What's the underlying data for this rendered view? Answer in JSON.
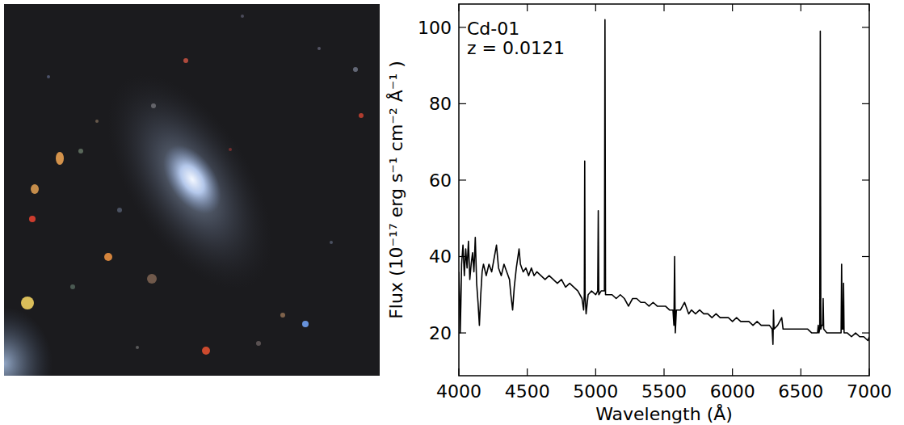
{
  "chart_data": {
    "type": "line",
    "annotations": [
      "Cd-01",
      "z = 0.0121"
    ],
    "x_label": "Wavelength (Å)",
    "y_label": "Flux (10⁻¹⁷ erg s⁻¹ cm⁻² Å⁻¹ )",
    "xlim": [
      4000,
      7000
    ],
    "ylim": [
      8.8,
      106.1
    ],
    "xticks": [
      4000,
      4500,
      5000,
      5500,
      6000,
      6500,
      7000
    ],
    "yticks": [
      20,
      40,
      60,
      80,
      100
    ],
    "grid": false,
    "x": [
      4000,
      4005,
      4010,
      4015,
      4020,
      4030,
      4040,
      4050,
      4060,
      4070,
      4080,
      4090,
      4100,
      4110,
      4120,
      4130,
      4140,
      4150,
      4160,
      4170,
      4180,
      4200,
      4220,
      4240,
      4260,
      4275,
      4290,
      4310,
      4330,
      4350,
      4370,
      4380,
      4393,
      4405,
      4420,
      4440,
      4450,
      4470,
      4490,
      4510,
      4530,
      4550,
      4570,
      4600,
      4630,
      4660,
      4690,
      4720,
      4750,
      4780,
      4810,
      4840,
      4870,
      4900,
      4912,
      4917,
      4920,
      4923,
      4930,
      4945,
      4970,
      5000,
      5015,
      5019,
      5023,
      5040,
      5064,
      5068,
      5072,
      5090,
      5120,
      5150,
      5180,
      5210,
      5240,
      5270,
      5300,
      5330,
      5360,
      5390,
      5420,
      5450,
      5480,
      5510,
      5540,
      5565,
      5572,
      5577,
      5582,
      5590,
      5620,
      5650,
      5680,
      5700,
      5730,
      5760,
      5790,
      5820,
      5850,
      5880,
      5910,
      5940,
      5970,
      6000,
      6030,
      6060,
      6090,
      6120,
      6150,
      6180,
      6210,
      6240,
      6270,
      6290,
      6296,
      6300,
      6304,
      6330,
      6360,
      6370,
      6400,
      6430,
      6460,
      6490,
      6520,
      6550,
      6580,
      6610,
      6622,
      6627,
      6632,
      6638,
      6642,
      6646,
      6652,
      6659,
      6663,
      6667,
      6690,
      6720,
      6750,
      6780,
      6794,
      6798,
      6802,
      6808,
      6812,
      6816,
      6840,
      6870,
      6900,
      6930,
      6960,
      6990,
      7000
    ],
    "series": [
      {
        "color": "#000000",
        "values": [
          36,
          30,
          20,
          28,
          38,
          43,
          35,
          42,
          37,
          44,
          34,
          38,
          41,
          36,
          45,
          33,
          28,
          22,
          30,
          36,
          38,
          35,
          38,
          36,
          40,
          43,
          37,
          35,
          38,
          36,
          34,
          30,
          26,
          32,
          37,
          42,
          38,
          36,
          37,
          35,
          37,
          35,
          36,
          35,
          34,
          35,
          34,
          33,
          34,
          32,
          33,
          32,
          31,
          29,
          26,
          30,
          65,
          30,
          25,
          30,
          31,
          30,
          31,
          52,
          30,
          31,
          31,
          102,
          30,
          30,
          30,
          29,
          30,
          29,
          27,
          29,
          29,
          28,
          28,
          27,
          28,
          27,
          27,
          27,
          26,
          26,
          22,
          40,
          20,
          26,
          26,
          28,
          25,
          26,
          25,
          26,
          25,
          25,
          24,
          25,
          24,
          24,
          24,
          23,
          24,
          23,
          23,
          23,
          22,
          23,
          22,
          22,
          22,
          21,
          17,
          26,
          21,
          22,
          24,
          21,
          21,
          21,
          21,
          21,
          21,
          21,
          20,
          20,
          20,
          22,
          20,
          21,
          99,
          21,
          22,
          22,
          29,
          21,
          20,
          20,
          20,
          20,
          20,
          38,
          21,
          21,
          33,
          20,
          20,
          19,
          20,
          19,
          19,
          18,
          19
        ]
      }
    ]
  }
}
